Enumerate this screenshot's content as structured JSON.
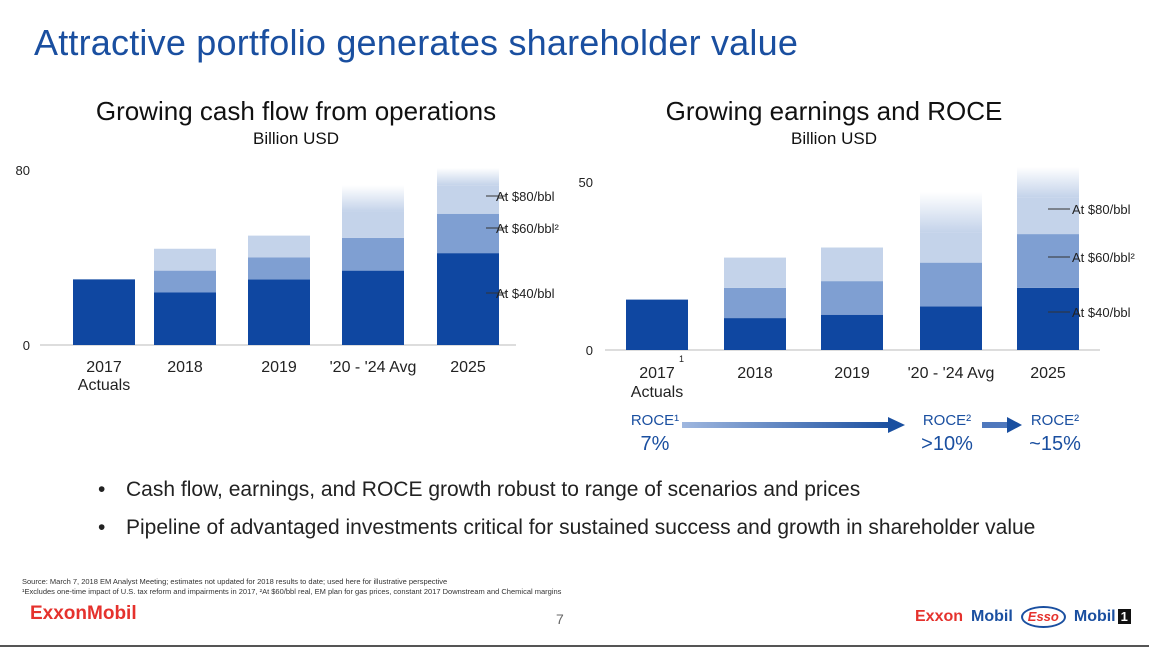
{
  "page": {
    "title": "Attractive portfolio generates shareholder value",
    "page_number": "7",
    "bullets": [
      "Cash flow, earnings, and ROCE growth robust to range of scenarios and prices",
      "Pipeline of advantaged investments critical for sustained success and growth in shareholder value"
    ],
    "footnotes": [
      "Source: March 7, 2018 EM Analyst Meeting; estimates not updated for 2018 results to date; used here for illustrative perspective",
      "¹Excludes one-time impact of U.S. tax reform and impairments in 2017, ²At $60/bbl real, EM plan for gas prices, constant 2017 Downstream and Chemical margins"
    ],
    "logo": "ExxonMobil",
    "brands": [
      "Exxon",
      "Mobil",
      "Esso",
      "Mobil",
      "1"
    ],
    "colors": {
      "title": "#1a4fa0",
      "dark": "#0f47a1",
      "mid": "#7f9fd2",
      "light": "#c4d3ea",
      "brand_red": "#e5322d"
    }
  },
  "chart_data": [
    {
      "type": "bar",
      "stacked": true,
      "title": "Growing cash flow from operations",
      "subtitle": "Billion USD",
      "ylim": [
        0,
        80
      ],
      "ytick_labels": [
        "0",
        "80"
      ],
      "categories": [
        "2017 Actuals",
        "2018",
        "2019",
        "'20 - '24 Avg",
        "2025"
      ],
      "series": [
        {
          "name": "At $40/bbl",
          "values": [
            30,
            24,
            30,
            34,
            42
          ]
        },
        {
          "name": "At $60/bbl²",
          "values": [
            0,
            10,
            10,
            15,
            18
          ]
        },
        {
          "name": "At $80/bbl",
          "values": [
            0,
            10,
            10,
            12,
            13
          ]
        }
      ],
      "fade_top": [
        0,
        0,
        0,
        12,
        8
      ]
    },
    {
      "type": "bar",
      "stacked": true,
      "title": "Growing earnings and ROCE",
      "subtitle": "Billion USD",
      "ylim": [
        0,
        50
      ],
      "ytick_labels": [
        "0",
        "50"
      ],
      "categories": [
        "2017 Actuals",
        "2018",
        "2019",
        "'20 - '24 Avg",
        "2025"
      ],
      "category_footnote": {
        "index": 0,
        "mark": "1"
      },
      "series": [
        {
          "name": "At $40/bbl",
          "values": [
            15,
            9.5,
            10.5,
            13,
            18.5
          ]
        },
        {
          "name": "At $60/bbl²",
          "values": [
            0,
            9,
            10,
            13,
            16
          ]
        },
        {
          "name": "At $80/bbl",
          "values": [
            0,
            9,
            10,
            9,
            11
          ]
        }
      ],
      "fade_top": [
        0,
        0,
        0,
        12,
        9
      ],
      "roce": [
        {
          "label": "ROCE¹",
          "value": "7%"
        },
        {
          "label": "ROCE²",
          "value": ">10%"
        },
        {
          "label": "ROCE²",
          "value": "~15%"
        }
      ]
    }
  ]
}
